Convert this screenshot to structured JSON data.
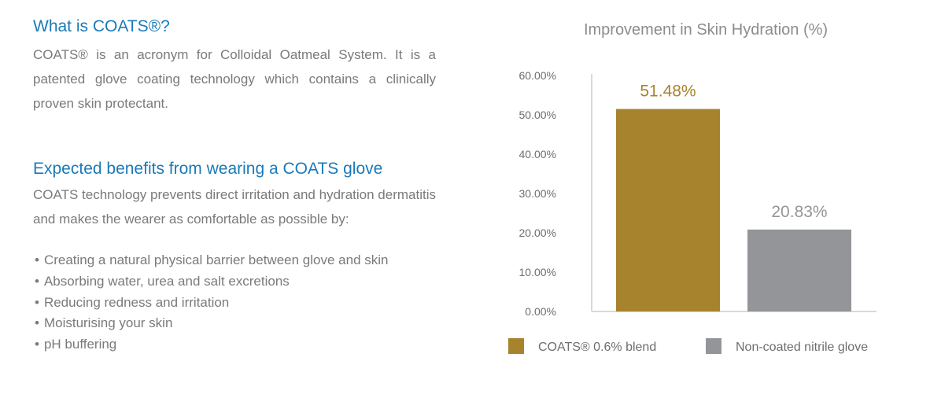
{
  "intro": {
    "heading": "What is COATS®?",
    "text": "COATS® is an acronym for Colloidal Oatmeal System. It is a patented glove coating technology which contains a clinically proven skin protectant."
  },
  "benefits": {
    "heading": "Expected benefits from wearing a COATS glove",
    "text": "COATS technology prevents direct irritation and hydration dermatitis and makes the wearer as comfortable as possible by:",
    "items": [
      "Creating a natural physical barrier between glove and skin",
      "Absorbing water, urea and salt excretions",
      "Reducing redness and irritation",
      "Moisturising your skin",
      "pH buffering"
    ]
  },
  "chart_data": {
    "type": "bar",
    "title": "Improvement in Skin Hydration (%)",
    "xlabel": "",
    "ylabel": "",
    "ylim": [
      0,
      60
    ],
    "yticks": [
      "0.00%",
      "10.00%",
      "20.00%",
      "30.00%",
      "40.00%",
      "50.00%",
      "60.00%"
    ],
    "grid": false,
    "legend_position": "bottom",
    "series": [
      {
        "name": "COATS® 0.6% blend",
        "value": 51.48,
        "label": "51.48%",
        "color": "#a8832e"
      },
      {
        "name": "Non-coated nitrile glove",
        "value": 20.83,
        "label": "20.83%",
        "color": "#939598"
      }
    ]
  },
  "colors": {
    "heading": "#1a7ab8",
    "body_text": "#7a7a7a",
    "axis": "#d9d9d9"
  }
}
